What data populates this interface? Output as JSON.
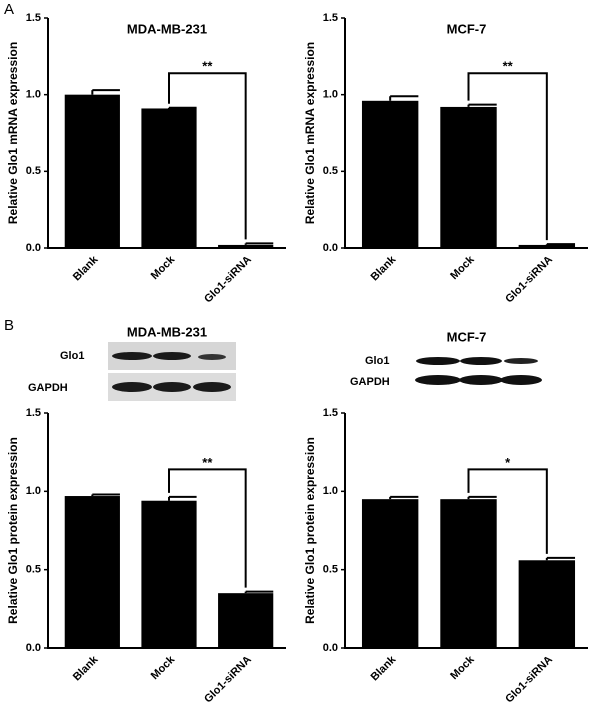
{
  "chart_data": [
    {
      "type": "bar",
      "panel_label": "A",
      "title": "MDA-MB-231",
      "y_label": "Relative Glo1 mRNA expression",
      "categories": [
        "Blank",
        "Mock",
        "Glo1-siRNA"
      ],
      "values": [
        1.0,
        0.91,
        0.02
      ],
      "errors": [
        0.03,
        0.005,
        0.01
      ],
      "color": "#000000",
      "ylim": [
        0,
        1.5
      ],
      "yticks": [
        {
          "value": 0,
          "label": "0.0"
        },
        {
          "value": 0.5,
          "label": "0.5"
        },
        {
          "value": 1,
          "label": "1.0"
        },
        {
          "value": 1.5,
          "label": "1.5"
        }
      ],
      "significance": "**"
    },
    {
      "type": "bar",
      "title": "MCF-7",
      "y_label": "Relative Glo1 mRNA expression",
      "categories": [
        "Blank",
        "Mock",
        "Glo1-siRNA"
      ],
      "values": [
        0.96,
        0.92,
        0.02
      ],
      "errors": [
        0.03,
        0.015,
        0.005
      ],
      "color": "#000000",
      "ylim": [
        0,
        1.5
      ],
      "yticks": [
        {
          "value": 0,
          "label": "0.0"
        },
        {
          "value": 0.5,
          "label": "0.5"
        },
        {
          "value": 1,
          "label": "1.0"
        },
        {
          "value": 1.5,
          "label": "1.5"
        }
      ],
      "significance": "**"
    },
    {
      "type": "bar",
      "panel_label": "B",
      "title": "MDA-MB-231",
      "y_label": "Relative Glo1 protein expression",
      "blot_labels": [
        "Glo1",
        "GAPDH"
      ],
      "categories": [
        "Blank",
        "Mock",
        "Glo1-siRNA"
      ],
      "values": [
        0.97,
        0.94,
        0.35
      ],
      "errors": [
        0.01,
        0.025,
        0.01
      ],
      "color": "#000000",
      "ylim": [
        0,
        1.5
      ],
      "yticks": [
        {
          "value": 0,
          "label": "0.0"
        },
        {
          "value": 0.5,
          "label": "0.5"
        },
        {
          "value": 1,
          "label": "1.0"
        },
        {
          "value": 1.5,
          "label": "1.5"
        }
      ],
      "significance": "**"
    },
    {
      "type": "bar",
      "title": "MCF-7",
      "y_label": "Relative Glo1 protein expression",
      "blot_labels": [
        "Glo1",
        "GAPDH"
      ],
      "categories": [
        "Blank",
        "Mock",
        "Glo1-siRNA"
      ],
      "values": [
        0.95,
        0.95,
        0.56
      ],
      "errors": [
        0.015,
        0.015,
        0.015
      ],
      "color": "#000000",
      "ylim": [
        0,
        1.5
      ],
      "yticks": [
        {
          "value": 0,
          "label": "0.0"
        },
        {
          "value": 0.5,
          "label": "0.5"
        },
        {
          "value": 1,
          "label": "1.0"
        },
        {
          "value": 1.5,
          "label": "1.5"
        }
      ],
      "significance": "*"
    }
  ]
}
